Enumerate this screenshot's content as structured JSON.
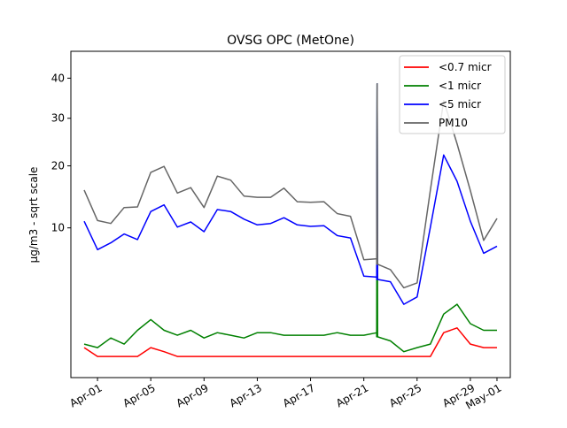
{
  "chart_data": {
    "type": "line",
    "title": "OVSG OPC (MetOne)",
    "xlabel": "",
    "ylabel": "µg/m3 - sqrt scale",
    "y_scale": "sqrt",
    "ylim": [
      0,
      47.5
    ],
    "xlim": [
      "2023-03-30",
      "2023-05-02"
    ],
    "x_ticks": [
      "Apr-01",
      "Apr-05",
      "Apr-09",
      "Apr-13",
      "Apr-17",
      "Apr-21",
      "Apr-25",
      "Apr-29",
      "May-01"
    ],
    "x_tick_dates": [
      "2023-04-01",
      "2023-04-05",
      "2023-04-09",
      "2023-04-13",
      "2023-04-17",
      "2023-04-21",
      "2023-04-25",
      "2023-04-29",
      "2023-05-01"
    ],
    "y_ticks": [
      10,
      20,
      30,
      40
    ],
    "legend_position": "top-right",
    "grid": false,
    "x": [
      "2023-03-31",
      "2023-04-01",
      "2023-04-02",
      "2023-04-03",
      "2023-04-04",
      "2023-04-05",
      "2023-04-06",
      "2023-04-07",
      "2023-04-08",
      "2023-04-09",
      "2023-04-10",
      "2023-04-11",
      "2023-04-12",
      "2023-04-13",
      "2023-04-14",
      "2023-04-15",
      "2023-04-16",
      "2023-04-17",
      "2023-04-18",
      "2023-04-19",
      "2023-04-20",
      "2023-04-21",
      "2023-04-22",
      "2023-04-23",
      "2023-04-24",
      "2023-04-25",
      "2023-04-26",
      "2023-04-27",
      "2023-04-28",
      "2023-04-29",
      "2023-04-30",
      "2023-05-01"
    ],
    "series": [
      {
        "name": "<0.7 micr",
        "color": "#ff0000",
        "values": [
          0.4,
          0.2,
          0.2,
          0.2,
          0.2,
          0.4,
          0.3,
          0.2,
          0.2,
          0.2,
          0.2,
          0.2,
          0.2,
          0.2,
          0.2,
          0.2,
          0.2,
          0.2,
          0.2,
          0.2,
          0.2,
          0.2,
          0.2,
          0.2,
          0.2,
          0.2,
          0.2,
          0.9,
          1.1,
          0.5,
          0.4,
          0.4
        ]
      },
      {
        "name": "<1 micr",
        "color": "#008000",
        "values": [
          0.5,
          0.4,
          0.7,
          0.5,
          1.0,
          1.5,
          1.0,
          0.8,
          1.0,
          0.7,
          0.9,
          0.8,
          0.7,
          0.9,
          0.9,
          0.8,
          0.8,
          0.8,
          0.8,
          0.9,
          0.8,
          0.8,
          0.9,
          0.6,
          0.3,
          0.4,
          0.5,
          1.8,
          2.4,
          1.3,
          1.0,
          1.0
        ]
      },
      {
        "name": "<5 micr",
        "color": "#0000ff",
        "values": [
          10.9,
          7.3,
          8.1,
          9.2,
          8.5,
          12.3,
          13.3,
          10.1,
          10.8,
          9.5,
          12.6,
          12.3,
          11.2,
          10.4,
          10.6,
          11.4,
          10.4,
          10.2,
          10.3,
          9.0,
          8.7,
          4.6,
          4.5,
          4.1,
          2.4,
          2.9,
          10.1,
          22.1,
          17.2,
          10.9,
          6.9,
          7.7
        ]
      },
      {
        "name": "PM10",
        "color": "#666666",
        "values": [
          15.7,
          11.0,
          10.6,
          12.9,
          13.0,
          18.8,
          19.9,
          15.2,
          16.1,
          12.9,
          18.1,
          17.4,
          14.7,
          14.5,
          14.5,
          16.0,
          13.8,
          13.7,
          13.8,
          12.0,
          11.6,
          6.2,
          6.3,
          5.2,
          3.6,
          4.0,
          15.7,
          34.2,
          24.4,
          15.6,
          8.4,
          11.3
        ]
      }
    ],
    "annotations": [
      {
        "series": "<1 micr",
        "x": "2023-04-22",
        "y": 38.5
      },
      {
        "series": "<5 micr",
        "x": "2023-04-22",
        "y": 38.5
      },
      {
        "series": "PM10",
        "x": "2023-04-22",
        "y": 38.5
      }
    ]
  }
}
